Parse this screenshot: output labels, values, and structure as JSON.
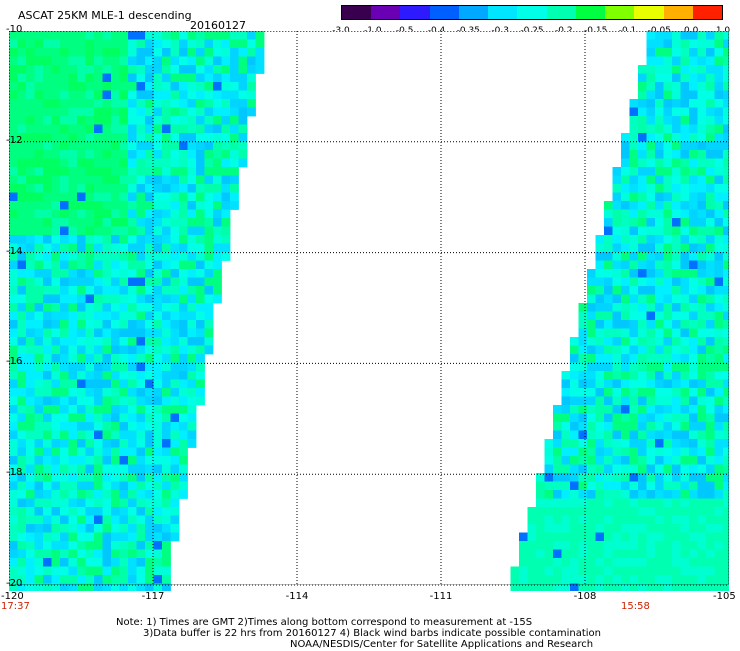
{
  "header": {
    "title": "ASCAT 25KM MLE-1 descending",
    "date": "20160127"
  },
  "colorbar": {
    "tick_labels": [
      "-3.0",
      "-1.0",
      "-0.5",
      "-0.4",
      "-0.35",
      "-0.3",
      "-0.25",
      "-0.2",
      "-0.15",
      "-0.1",
      "-0.05",
      "0.0",
      "1.0"
    ],
    "colors": [
      "#3a0050",
      "#6a00b4",
      "#2e1aff",
      "#0060ff",
      "#00a8ff",
      "#00e6ff",
      "#00ffe6",
      "#00ffb0",
      "#00ff40",
      "#80ff00",
      "#e8ff00",
      "#ffb000",
      "#ff2000"
    ]
  },
  "map": {
    "lat_labels": [
      "-10",
      "-12",
      "-14",
      "-16",
      "-18",
      "-20"
    ],
    "lon_labels": [
      "-120",
      "-117",
      "-114",
      "-111",
      "-108",
      "-105"
    ],
    "time_labels": [
      "17:37",
      "15:58"
    ],
    "swath_color": "#00ffe6",
    "background_color": "#ffffff"
  },
  "notes": [
    "Note: 1) Times are GMT 2)Times along bottom correspond to measurement at -15S",
    "3)Data buffer is 22 hrs from 20160127 4) Black wind barbs indicate possible contamination",
    "NOAA/NESDIS/Center for Satellite Applications and Research"
  ]
}
